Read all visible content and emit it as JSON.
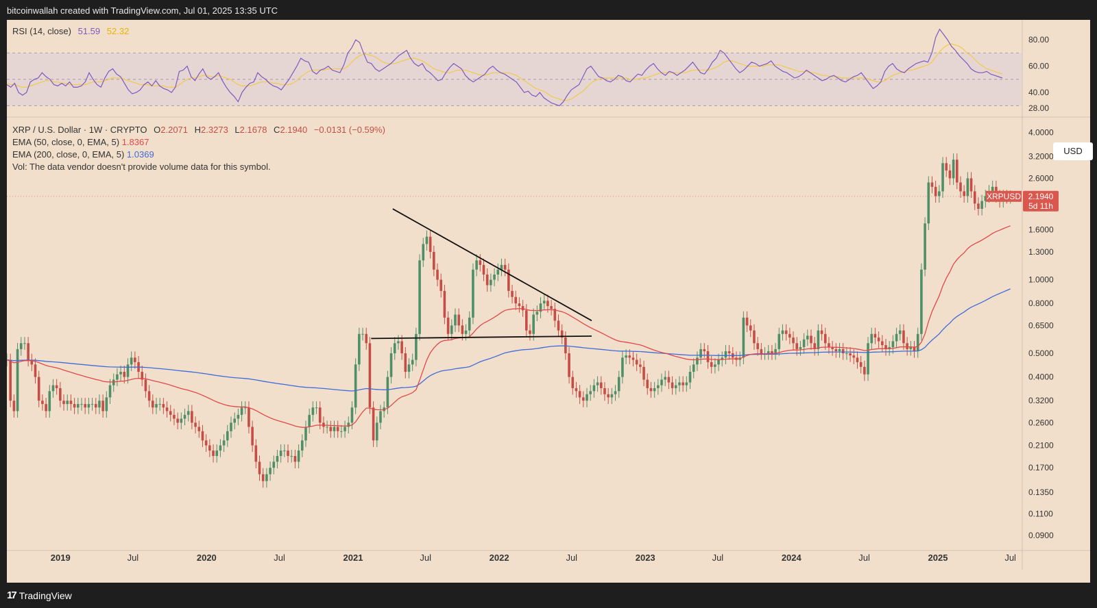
{
  "header": {
    "credit": "bitcoinwallah created with TradingView.com, Jul 01, 2025 13:35 UTC"
  },
  "footer": {
    "brand": "TradingView",
    "logo_glyph": "17"
  },
  "rsi_legend": {
    "title": "RSI (14, close)",
    "value": "51.59",
    "ma_value": "52.32"
  },
  "price_legend": {
    "symbol": "XRP / U.S. Dollar · 1W · CRYPTO",
    "ohlc": [
      {
        "k": "O",
        "v": "2.2071"
      },
      {
        "k": "H",
        "v": "2.3273"
      },
      {
        "k": "L",
        "v": "2.1678"
      },
      {
        "k": "C",
        "v": "2.1940"
      }
    ],
    "change": "−0.0131 (−0.59%)",
    "ema50_label": "EMA (50, close, 0, EMA, 5)",
    "ema50_value": "1.8367",
    "ema200_label": "EMA (200, close, 0, EMA, 5)",
    "ema200_value": "1.0369",
    "vol_note": "Vol: The data vendor doesn't provide volume data for this symbol."
  },
  "currency_button": "USD",
  "price_tag": {
    "symbol": "XRPUSD",
    "price": "2.1940",
    "countdown": "5d 11h"
  },
  "colors": {
    "background": "#f1dfcb",
    "up": "#4f8f67",
    "down": "#c64d45",
    "ema50": "#e04848",
    "ema200": "#3d6bdb",
    "rsi": "#7e57c2",
    "rsi_ma": "#f2c94c",
    "rsi_band": "#ddd0d8"
  },
  "chart_data": [
    {
      "type": "line",
      "title": "RSI (14, close)",
      "y_ticks": [
        "80.00",
        "60.00",
        "40.00",
        "28.00"
      ],
      "ylim": [
        25,
        92
      ],
      "bands": [
        70,
        50,
        30
      ],
      "series": [
        {
          "name": "RSI",
          "values": [
            46,
            44,
            47,
            40,
            38,
            40,
            48,
            50,
            51,
            55,
            52,
            50,
            46,
            45,
            47,
            45,
            48,
            44,
            44,
            45,
            48,
            55,
            50,
            46,
            44,
            51,
            56,
            58,
            54,
            52,
            47,
            42,
            39,
            40,
            42,
            46,
            48,
            45,
            49,
            45,
            43,
            42,
            40,
            44,
            56,
            57,
            60,
            52,
            49,
            54,
            58,
            52,
            50,
            52,
            55,
            49,
            44,
            40,
            37,
            33,
            40,
            44,
            47,
            48,
            55,
            52,
            50,
            47,
            45,
            44,
            42,
            46,
            50,
            55,
            60,
            66,
            64,
            63,
            56,
            54,
            57,
            58,
            60,
            57,
            56,
            55,
            61,
            70,
            74,
            80,
            78,
            70,
            63,
            62,
            58,
            56,
            58,
            60,
            62,
            65,
            68,
            70,
            72,
            66,
            62,
            60,
            62,
            57,
            55,
            52,
            49,
            50,
            55,
            59,
            62,
            60,
            58,
            53,
            50,
            48,
            50,
            52,
            54,
            58,
            60,
            57,
            55,
            54,
            52,
            50,
            48,
            44,
            40,
            41,
            38,
            37,
            40,
            36,
            34,
            32,
            31,
            30,
            33,
            38,
            42,
            44,
            46,
            52,
            58,
            60,
            56,
            52,
            51,
            49,
            48,
            50,
            53,
            52,
            49,
            48,
            51,
            54,
            53,
            57,
            60,
            62,
            58,
            55,
            53,
            56,
            55,
            53,
            55,
            57,
            60,
            63,
            59,
            55,
            54,
            58,
            63,
            66,
            72,
            70,
            66,
            62,
            58,
            55,
            57,
            60,
            63,
            62,
            60,
            61,
            62,
            64,
            60,
            58,
            56,
            55,
            53,
            51,
            52,
            54,
            57,
            55,
            53,
            51,
            49,
            50,
            52,
            53,
            51,
            49,
            48,
            50,
            52,
            53,
            55,
            51,
            47,
            43,
            45,
            48,
            56,
            60,
            62,
            58,
            56,
            55,
            58,
            60,
            62,
            63,
            64,
            63,
            70,
            82,
            88,
            84,
            80,
            75,
            72,
            68,
            65,
            62,
            58,
            56,
            55,
            55,
            56,
            54,
            53,
            52,
            51
          ]
        },
        {
          "name": "RSI MA",
          "values": [
            47,
            46,
            46,
            45,
            44,
            44,
            45,
            46,
            47,
            48,
            49,
            49,
            48,
            48,
            47,
            47,
            46,
            46,
            46,
            46,
            46,
            47,
            48,
            48,
            48,
            49,
            50,
            51,
            51,
            51,
            50,
            49,
            48,
            47,
            46,
            46,
            46,
            45,
            45,
            45,
            45,
            44,
            44,
            44,
            46,
            48,
            50,
            51,
            51,
            52,
            53,
            53,
            52,
            52,
            53,
            52,
            51,
            50,
            48,
            46,
            45,
            45,
            45,
            46,
            47,
            48,
            48,
            48,
            47,
            47,
            46,
            46,
            46,
            47,
            49,
            52,
            54,
            56,
            57,
            57,
            57,
            57,
            58,
            58,
            58,
            58,
            58,
            60,
            63,
            66,
            68,
            69,
            69,
            68,
            67,
            65,
            63,
            62,
            62,
            62,
            63,
            64,
            65,
            66,
            66,
            65,
            64,
            62,
            60,
            58,
            57,
            56,
            55,
            55,
            56,
            57,
            57,
            57,
            56,
            55,
            54,
            53,
            53,
            54,
            55,
            55,
            55,
            55,
            55,
            54,
            53,
            51,
            49,
            47,
            45,
            43,
            42,
            41,
            39,
            37,
            36,
            35,
            34,
            34,
            35,
            37,
            39,
            41,
            44,
            47,
            49,
            50,
            51,
            51,
            51,
            51,
            51,
            51,
            51,
            50,
            50,
            50,
            51,
            51,
            52,
            53,
            54,
            55,
            55,
            55,
            55,
            55,
            55,
            55,
            56,
            57,
            57,
            57,
            57,
            57,
            58,
            59,
            61,
            63,
            64,
            64,
            63,
            62,
            61,
            60,
            60,
            60,
            60,
            60,
            61,
            61,
            61,
            61,
            60,
            59,
            58,
            57,
            56,
            56,
            56,
            55,
            55,
            54,
            53,
            53,
            52,
            52,
            52,
            51,
            51,
            51,
            51,
            51,
            51,
            51,
            50,
            49,
            48,
            48,
            49,
            51,
            53,
            54,
            55,
            56,
            57,
            57,
            58,
            59,
            60,
            61,
            63,
            67,
            71,
            74,
            76,
            77,
            76,
            75,
            73,
            70,
            68,
            65,
            62,
            60,
            58,
            57,
            56,
            55,
            54
          ]
        }
      ]
    },
    {
      "type": "candlestick",
      "title": "XRP / U.S. Dollar · 1W · CRYPTO",
      "scale": "log",
      "ylim": [
        0.078,
        4.6
      ],
      "y_ticks": [
        "4.0000",
        "3.2000",
        "2.6000",
        "1.6000",
        "1.3000",
        "1.0000",
        "0.8000",
        "0.6500",
        "0.5000",
        "0.4000",
        "0.3200",
        "0.2600",
        "0.2100",
        "0.1700",
        "0.1350",
        "0.1100",
        "0.0900"
      ],
      "x_ticks": [
        "2019",
        "Jul",
        "2020",
        "Jul",
        "2021",
        "Jul",
        "2022",
        "Jul",
        "2023",
        "Jul",
        "2024",
        "Jul",
        "2025",
        "Jul"
      ],
      "x_range": [
        "2018-08-20",
        "2025-07-29"
      ],
      "ohlc_anchor": {
        "start": "2018-08-20",
        "values": [
          0.47,
          0.32,
          0.29,
          0.52,
          0.55,
          0.55,
          0.47,
          0.45,
          0.4,
          0.32,
          0.31,
          0.29,
          0.35,
          0.37,
          0.36,
          0.32,
          0.31,
          0.32,
          0.31,
          0.3,
          0.31,
          0.31,
          0.3,
          0.31,
          0.31,
          0.3,
          0.32,
          0.29,
          0.33,
          0.37,
          0.39,
          0.41,
          0.42,
          0.4,
          0.45,
          0.48,
          0.46,
          0.42,
          0.39,
          0.35,
          0.32,
          0.3,
          0.31,
          0.31,
          0.3,
          0.29,
          0.28,
          0.27,
          0.26,
          0.27,
          0.28,
          0.29,
          0.26,
          0.25,
          0.24,
          0.22,
          0.21,
          0.2,
          0.19,
          0.2,
          0.21,
          0.22,
          0.24,
          0.26,
          0.27,
          0.28,
          0.3,
          0.3,
          0.25,
          0.21,
          0.18,
          0.16,
          0.15,
          0.16,
          0.17,
          0.18,
          0.19,
          0.2,
          0.2,
          0.19,
          0.19,
          0.18,
          0.2,
          0.22,
          0.25,
          0.28,
          0.3,
          0.3,
          0.26,
          0.25,
          0.25,
          0.24,
          0.25,
          0.24,
          0.24,
          0.25,
          0.26,
          0.3,
          0.45,
          0.6,
          0.6,
          0.55,
          0.3,
          0.22,
          0.26,
          0.29,
          0.3,
          0.4,
          0.5,
          0.55,
          0.56,
          0.5,
          0.42,
          0.45,
          0.47,
          0.6,
          1.2,
          1.4,
          1.5,
          1.3,
          1.1,
          1.0,
          0.9,
          0.7,
          0.6,
          0.65,
          0.72,
          0.65,
          0.6,
          0.62,
          0.7,
          1.1,
          1.2,
          1.15,
          1.05,
          0.95,
          1.0,
          1.05,
          1.1,
          1.15,
          1.1,
          0.9,
          0.85,
          0.8,
          0.78,
          0.75,
          0.62,
          0.6,
          0.72,
          0.74,
          0.8,
          0.82,
          0.78,
          0.76,
          0.68,
          0.62,
          0.58,
          0.5,
          0.4,
          0.36,
          0.35,
          0.33,
          0.32,
          0.34,
          0.35,
          0.37,
          0.38,
          0.36,
          0.34,
          0.33,
          0.34,
          0.35,
          0.4,
          0.48,
          0.49,
          0.48,
          0.47,
          0.45,
          0.44,
          0.39,
          0.36,
          0.35,
          0.36,
          0.37,
          0.39,
          0.4,
          0.38,
          0.36,
          0.37,
          0.38,
          0.37,
          0.38,
          0.42,
          0.45,
          0.48,
          0.52,
          0.51,
          0.46,
          0.44,
          0.45,
          0.47,
          0.48,
          0.51,
          0.5,
          0.48,
          0.47,
          0.48,
          0.7,
          0.65,
          0.62,
          0.55,
          0.52,
          0.5,
          0.5,
          0.51,
          0.5,
          0.52,
          0.6,
          0.62,
          0.6,
          0.58,
          0.55,
          0.52,
          0.53,
          0.57,
          0.59,
          0.55,
          0.52,
          0.62,
          0.6,
          0.55,
          0.53,
          0.52,
          0.51,
          0.52,
          0.5,
          0.5,
          0.49,
          0.48,
          0.46,
          0.44,
          0.41,
          0.55,
          0.6,
          0.58,
          0.56,
          0.54,
          0.52,
          0.53,
          0.56,
          0.6,
          0.62,
          0.55,
          0.52,
          0.53,
          0.51,
          0.6,
          1.1,
          1.7,
          2.5,
          2.4,
          2.2,
          2.3,
          3.0,
          2.8,
          2.6,
          3.1,
          2.5,
          2.3,
          2.2,
          2.6,
          2.3,
          2.05,
          1.95,
          2.1,
          2.2,
          2.3,
          2.4,
          2.2,
          2.1,
          2.2,
          2.18,
          2.19
        ]
      },
      "annotations": [
        "descending trendline",
        "horizontal support line"
      ],
      "series": [
        {
          "name": "EMA (50, close, 0, EMA, 5)",
          "last": 1.8367
        },
        {
          "name": "EMA (200, close, 0, EMA, 5)",
          "last": 1.0369
        }
      ]
    }
  ]
}
